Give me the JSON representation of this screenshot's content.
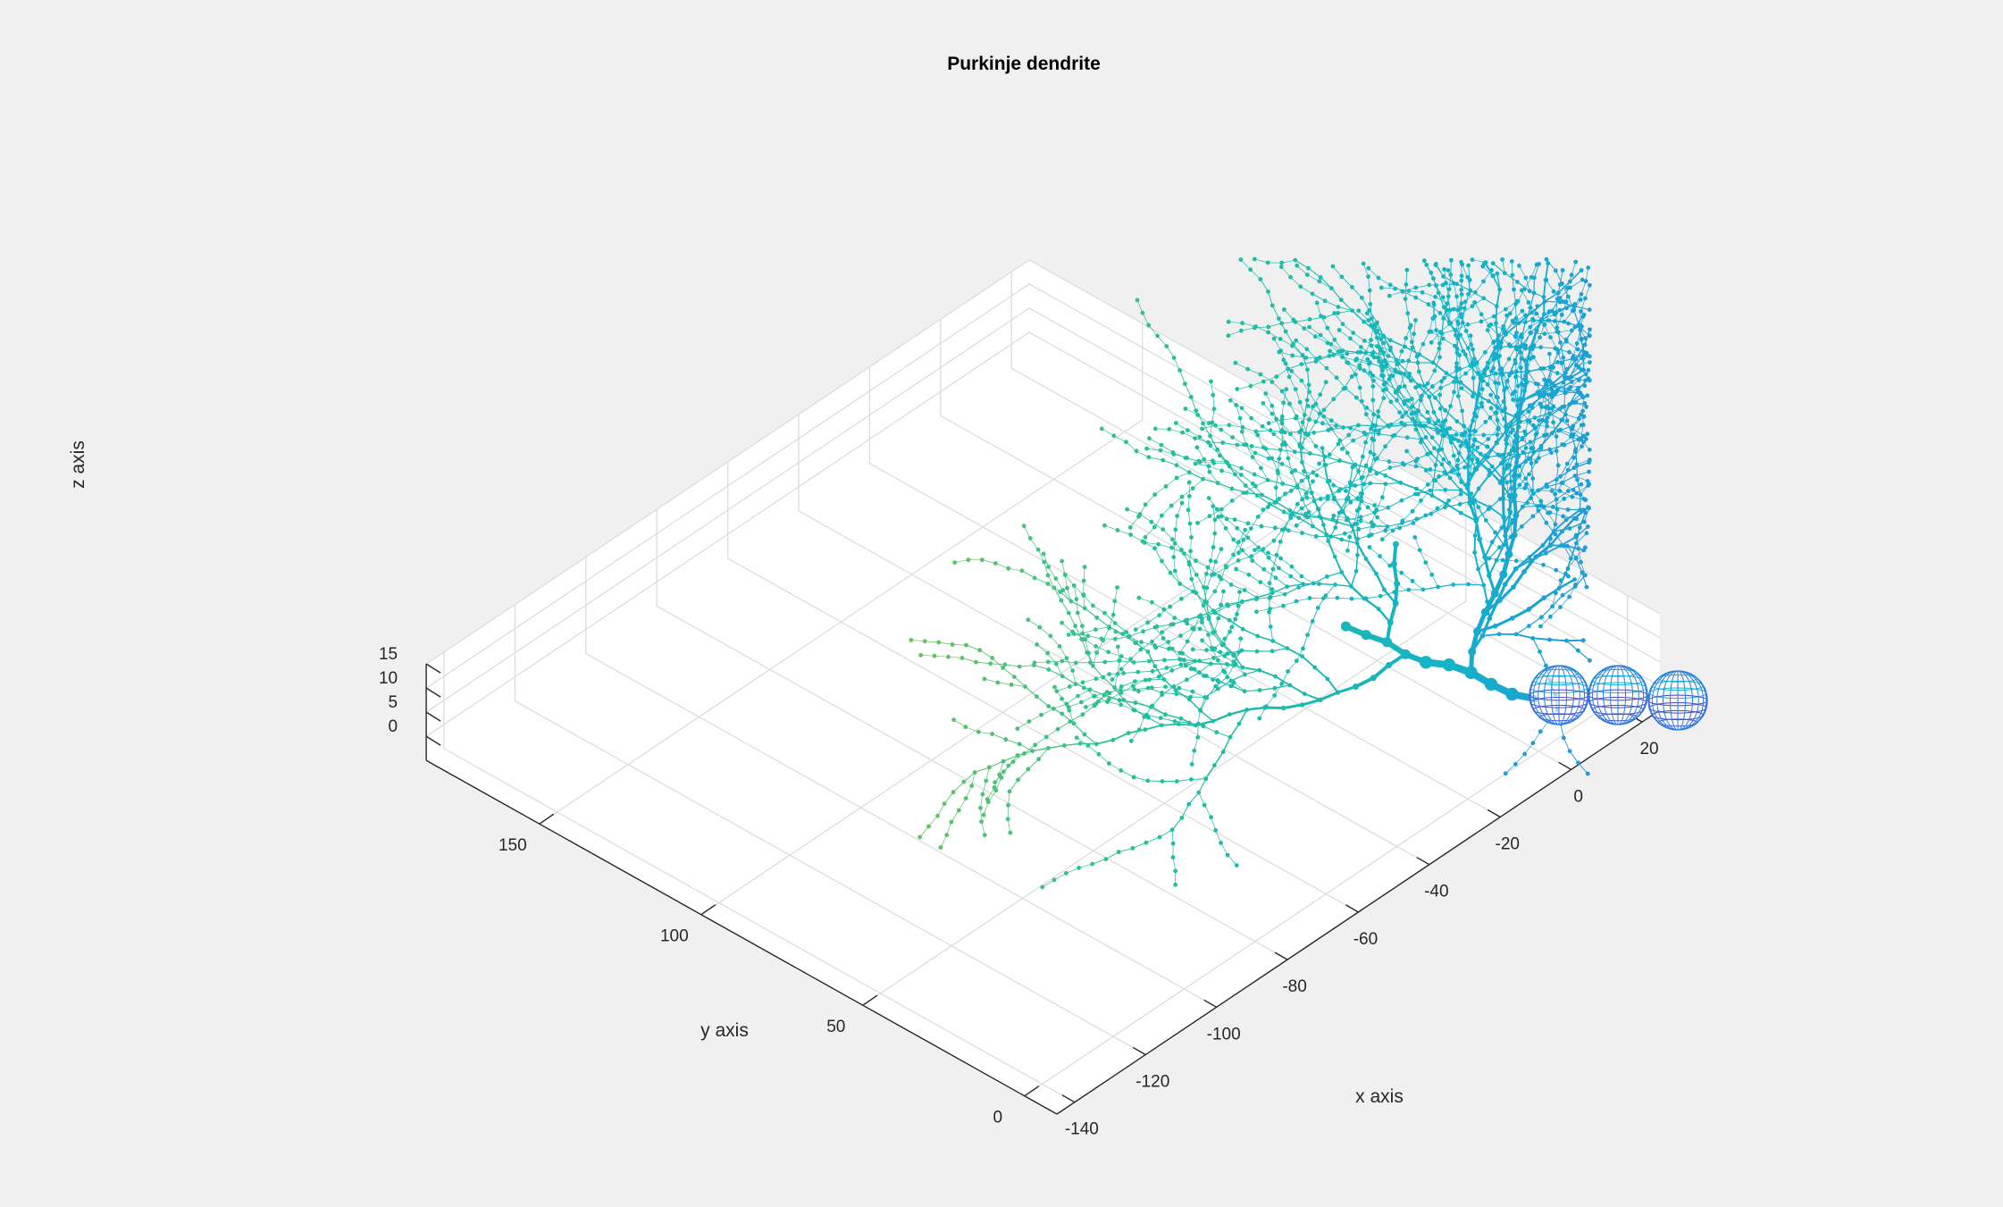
{
  "chart_data": {
    "type": "scatter",
    "title": "Purkinje dendrite",
    "xlabel": "x axis",
    "ylabel": "y axis",
    "zlabel": "z axis",
    "xlim": [
      -145,
      25
    ],
    "ylim": [
      -10,
      185
    ],
    "zlim": [
      -5,
      15
    ],
    "xticks": [
      -140,
      -120,
      -100,
      -80,
      -60,
      -40,
      -20,
      0,
      20
    ],
    "yticks": [
      0,
      50,
      100,
      150
    ],
    "zticks": [
      0,
      5,
      10,
      15
    ],
    "grid": true,
    "colormap": [
      "#3e26a8",
      "#2e7fe8",
      "#13b2c8",
      "#25c09a",
      "#82c341",
      "#e5c02b",
      "#f9fb15"
    ],
    "sphere_color": "#2c6bdc",
    "branch_segments": 2200,
    "somata_spheres": 3
  }
}
